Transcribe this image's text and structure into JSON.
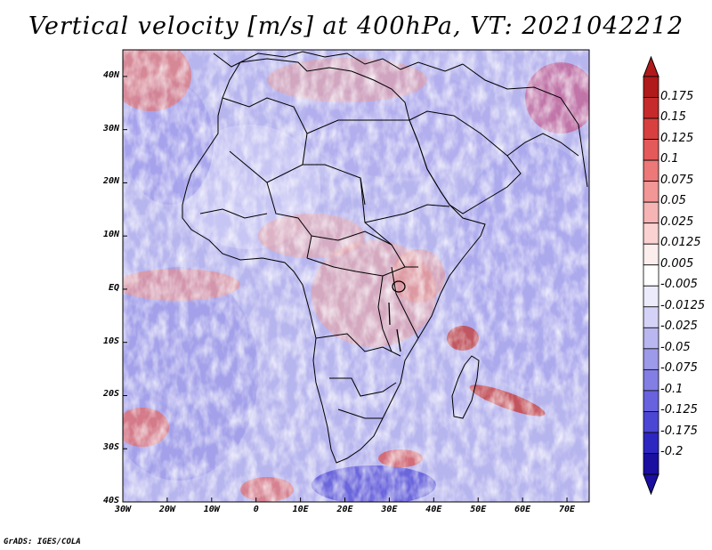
{
  "title": "Vertical velocity [m/s] at 400hPa, VT: 2021042212",
  "credit": "GrADS: IGES/COLA",
  "map": {
    "lon_range": [
      -30,
      75
    ],
    "lat_range": [
      -40,
      45
    ],
    "x_ticks": [
      "30W",
      "20W",
      "10W",
      "0",
      "10E",
      "20E",
      "30E",
      "40E",
      "50E",
      "60E",
      "70E"
    ],
    "x_tick_values": [
      -30,
      -20,
      -10,
      0,
      10,
      20,
      30,
      40,
      50,
      60,
      70
    ],
    "y_ticks": [
      "40N",
      "30N",
      "20N",
      "10N",
      "EQ",
      "10S",
      "20S",
      "30S",
      "40S"
    ],
    "y_tick_values": [
      40,
      30,
      20,
      10,
      0,
      -10,
      -20,
      -30,
      -40
    ]
  },
  "colorbar": {
    "labels": [
      "0.175",
      "0.15",
      "0.125",
      "0.1",
      "0.075",
      "0.05",
      "0.025",
      "0.0125",
      "0.005",
      "-0.005",
      "-0.0125",
      "-0.025",
      "-0.05",
      "-0.075",
      "-0.1",
      "-0.125",
      "-0.175",
      "-0.2"
    ],
    "colors": [
      "#b01a1a",
      "#c62a2a",
      "#d84040",
      "#e45a5a",
      "#ec7878",
      "#f29696",
      "#f6b4b4",
      "#fad2d2",
      "#fdeeee",
      "#ffffff",
      "#ecebfb",
      "#d4d2f6",
      "#b9b6f0",
      "#9e9aea",
      "#837ee4",
      "#6862de",
      "#4c46d4",
      "#2e26c0",
      "#1a0fa0"
    ]
  }
}
